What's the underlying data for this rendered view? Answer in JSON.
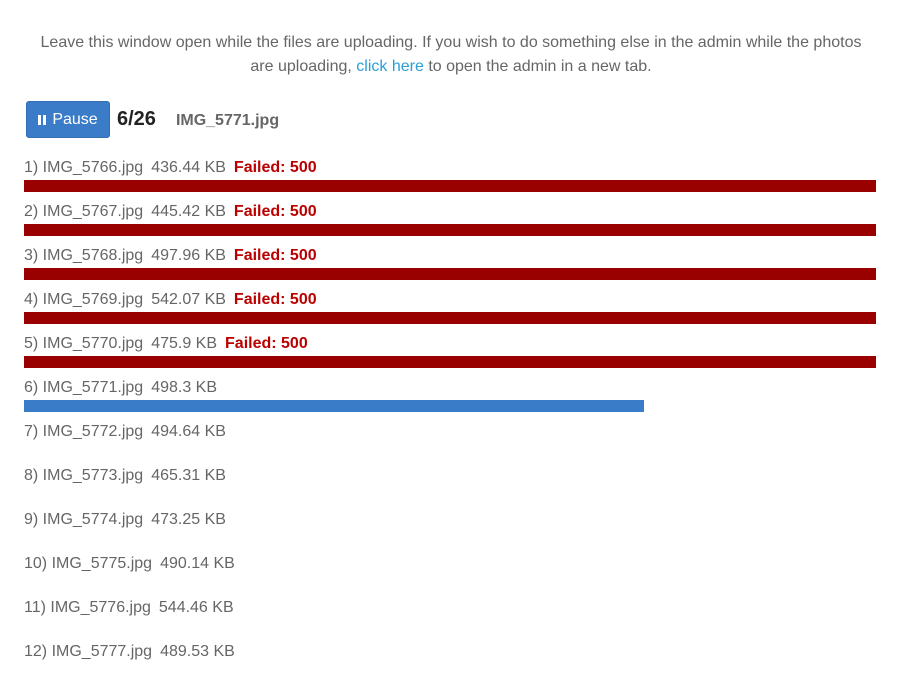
{
  "notice": {
    "text_before": "Leave this window open while the files are uploading. If you wish to do something else in the admin while the photos are uploading,",
    "link_text": "click here",
    "text_after": "to open the admin in a new tab."
  },
  "controls": {
    "pause_label": "Pause",
    "counter": "6/26",
    "current_file": "IMG_5771.jpg"
  },
  "colors": {
    "failed_bar": "#990000",
    "failed_text": "#bb0000",
    "progress_bar": "#3a7cc7",
    "link": "#2a9fd6"
  },
  "files": [
    {
      "label": "1) IMG_5766.jpg",
      "size": "436.44 KB",
      "status": "Failed: 500",
      "state": "failed",
      "progress": 1.0
    },
    {
      "label": "2) IMG_5767.jpg",
      "size": "445.42 KB",
      "status": "Failed: 500",
      "state": "failed",
      "progress": 1.0
    },
    {
      "label": "3) IMG_5768.jpg",
      "size": "497.96 KB",
      "status": "Failed: 500",
      "state": "failed",
      "progress": 1.0
    },
    {
      "label": "4) IMG_5769.jpg",
      "size": "542.07 KB",
      "status": "Failed: 500",
      "state": "failed",
      "progress": 1.0
    },
    {
      "label": "5) IMG_5770.jpg",
      "size": "475.9 KB",
      "status": "Failed: 500",
      "state": "failed",
      "progress": 1.0
    },
    {
      "label": "6) IMG_5771.jpg",
      "size": "498.3 KB",
      "status": "",
      "state": "uploading",
      "progress": 0.728
    },
    {
      "label": "7) IMG_5772.jpg",
      "size": "494.64 KB",
      "status": "",
      "state": "pending",
      "progress": 0
    },
    {
      "label": "8) IMG_5773.jpg",
      "size": "465.31 KB",
      "status": "",
      "state": "pending",
      "progress": 0
    },
    {
      "label": "9) IMG_5774.jpg",
      "size": "473.25 KB",
      "status": "",
      "state": "pending",
      "progress": 0
    },
    {
      "label": "10) IMG_5775.jpg",
      "size": "490.14 KB",
      "status": "",
      "state": "pending",
      "progress": 0
    },
    {
      "label": "11) IMG_5776.jpg",
      "size": "544.46 KB",
      "status": "",
      "state": "pending",
      "progress": 0
    },
    {
      "label": "12) IMG_5777.jpg",
      "size": "489.53 KB",
      "status": "",
      "state": "pending",
      "progress": 0
    }
  ]
}
